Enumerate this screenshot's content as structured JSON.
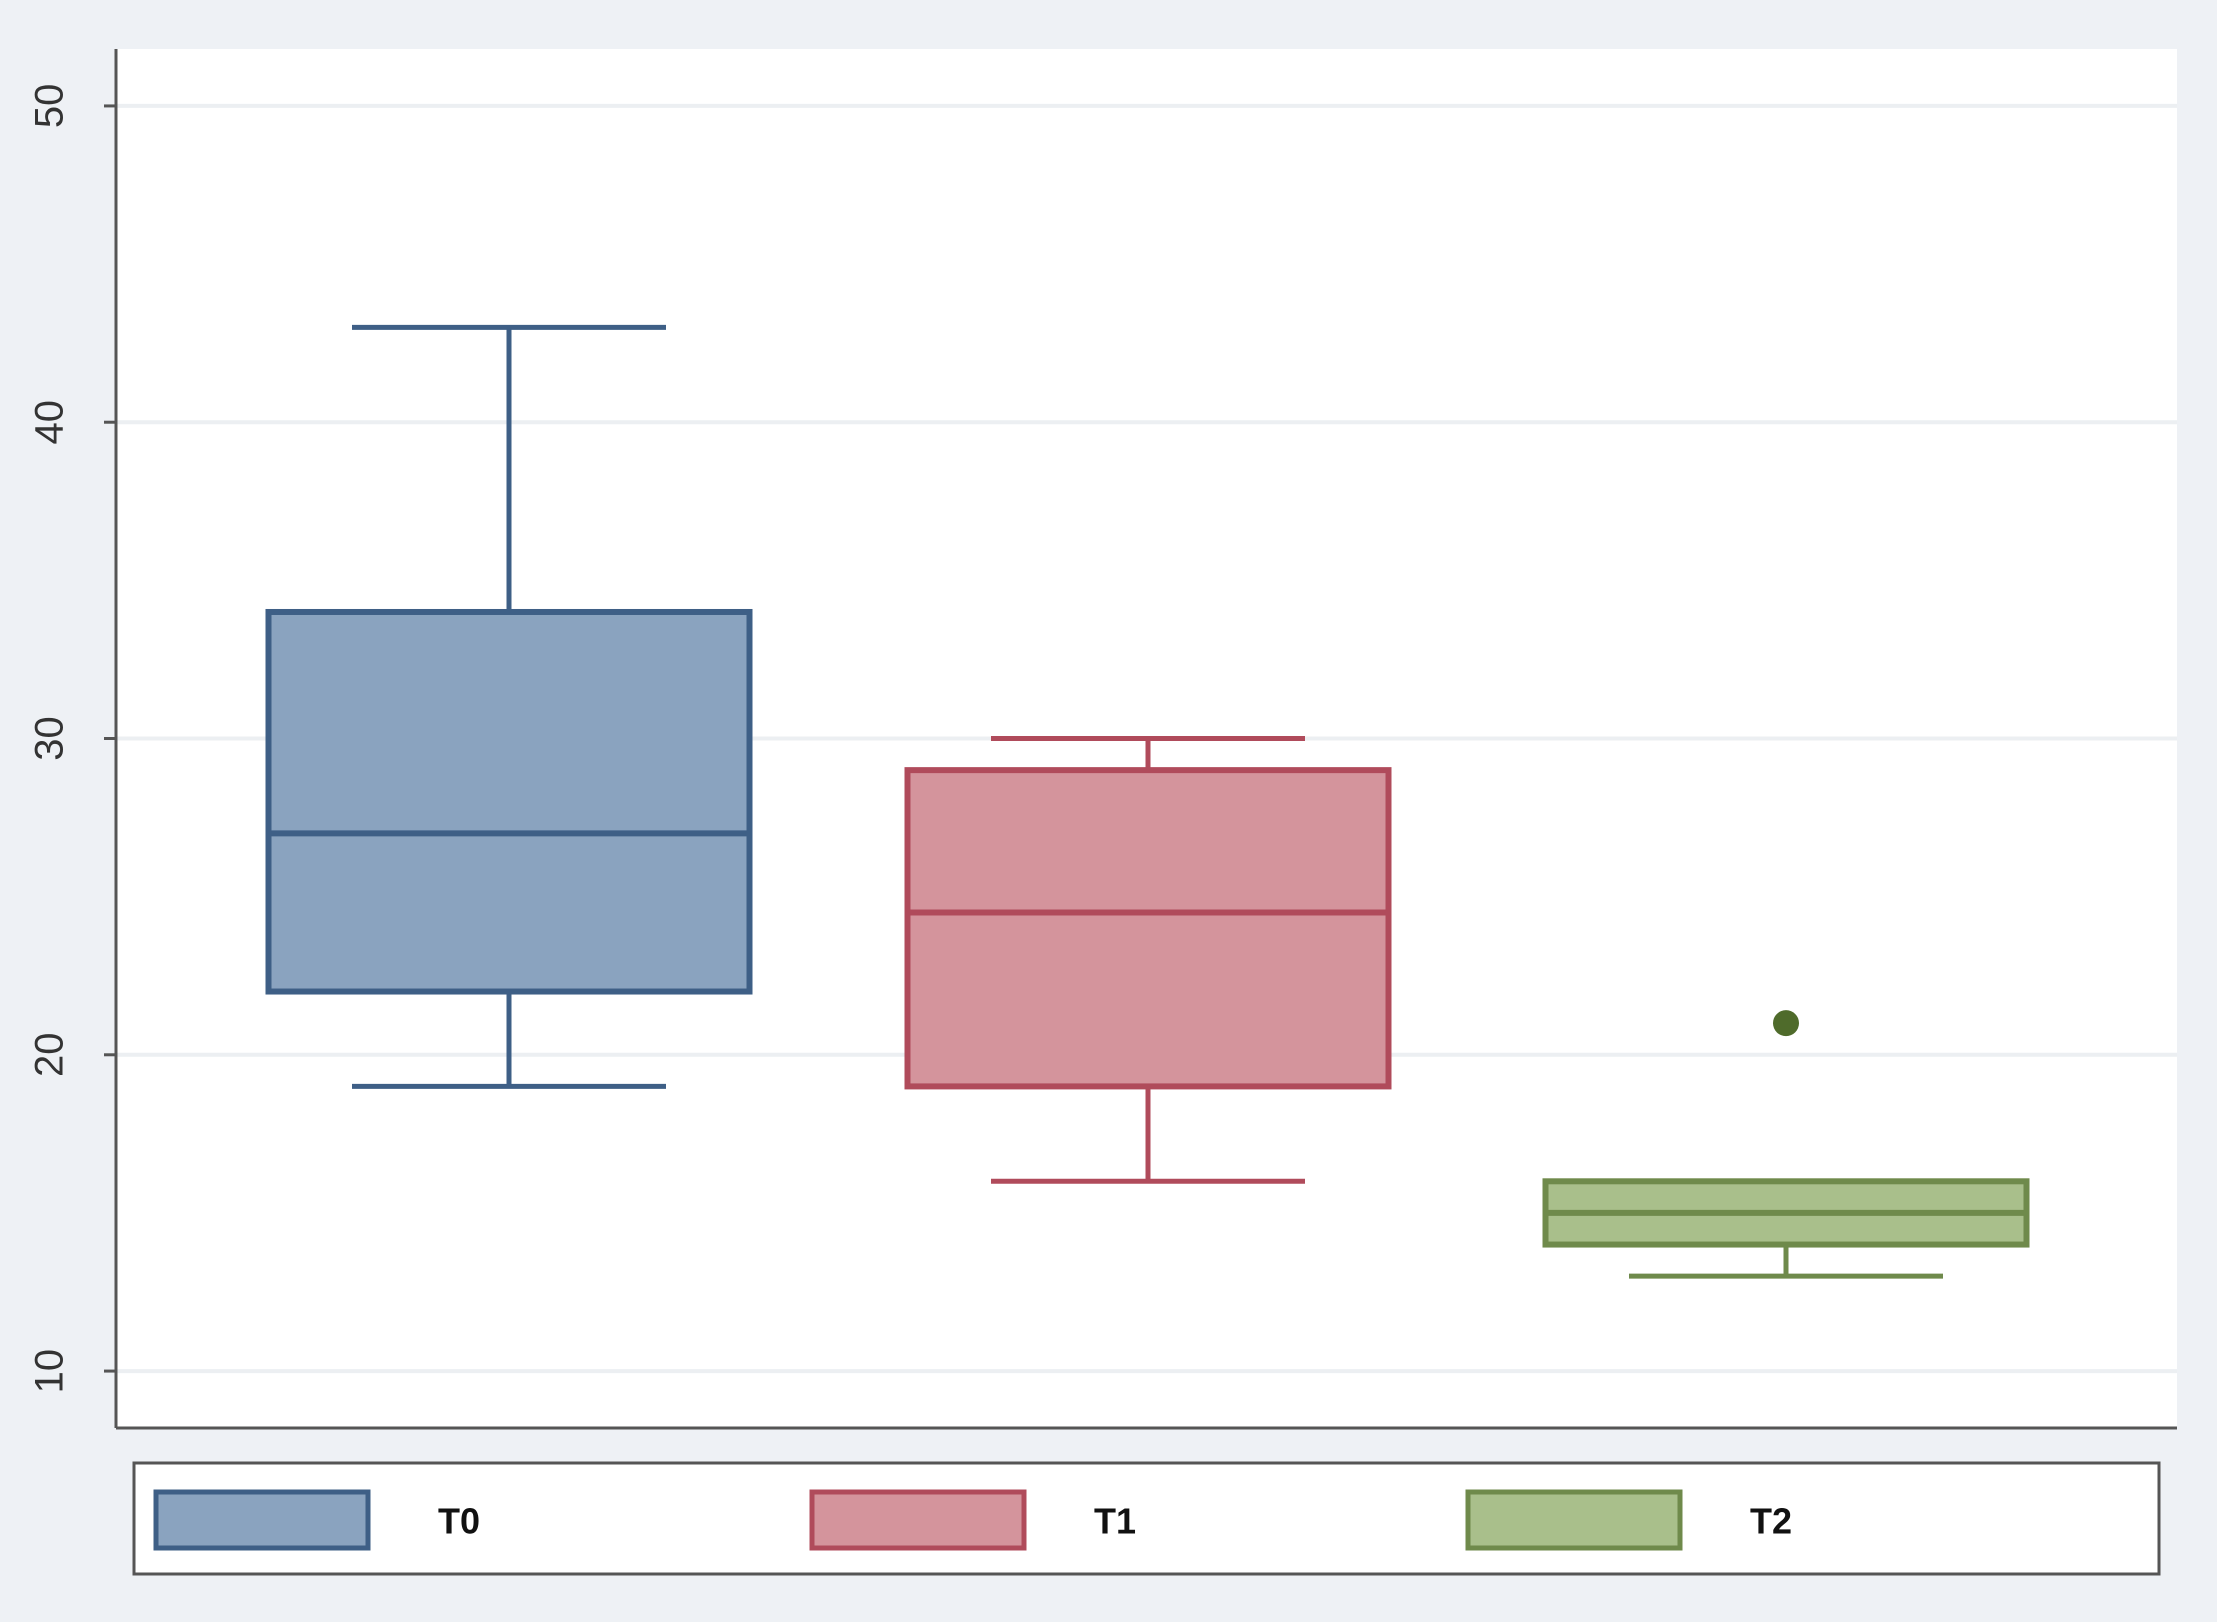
{
  "chart_data": {
    "type": "box",
    "series": [
      {
        "name": "T0",
        "color": "#8aa3bf",
        "edge": "#3e5f86",
        "whislo": 19,
        "q1": 22,
        "med": 27,
        "q3": 34,
        "whishi": 43,
        "outliers": []
      },
      {
        "name": "T1",
        "color": "#d4949c",
        "edge": "#b04b5b",
        "whislo": 16,
        "q1": 19,
        "med": 24.5,
        "q3": 29,
        "whishi": 30,
        "outliers": []
      },
      {
        "name": "T2",
        "color": "#a9bf8b",
        "edge": "#6f8a4b",
        "whislo": 13,
        "q1": 14,
        "med": 15,
        "q3": 16,
        "whishi": 16,
        "outliers": [
          21
        ]
      }
    ],
    "outlier_color": "#4f6b2b",
    "ylim": [
      8.2,
      51.8
    ],
    "yticks": [
      10,
      20,
      30,
      40,
      50
    ],
    "grid": true
  }
}
